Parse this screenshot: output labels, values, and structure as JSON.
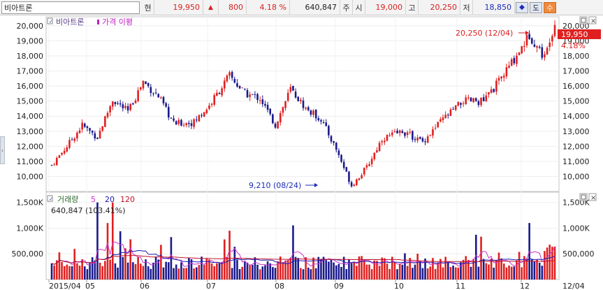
{
  "toolbar": {
    "stock_name": "비아트론",
    "current_label": "현",
    "current_price": "19,950",
    "change_arrow": "▲",
    "change": "800",
    "change_pct": "4.18 %",
    "volume": "640,847",
    "volume_label": "주",
    "open_label": "시",
    "open": "19,000",
    "high_label": "고",
    "high": "20,250",
    "low_label": "저",
    "low": "18,850",
    "btn_cursor": "◆",
    "btn_do": "도",
    "btn_su": "수"
  },
  "price_panel": {
    "legend_name": "비아트론",
    "legend_ma": "가격 이평",
    "high_annotation": "20,250 (12/04)",
    "low_annotation": "9,210 (08/24)",
    "last_price_tag": "19,950",
    "last_pct_tag": "4.18%",
    "y_ticks": [
      "20,000",
      "19,000",
      "18,000",
      "17,000",
      "16,000",
      "15,000",
      "14,000",
      "13,000",
      "12,000",
      "11,000",
      "10,000"
    ]
  },
  "volume_panel": {
    "legend_name": "거래량",
    "legend_ma5": "5",
    "legend_ma20": "20",
    "legend_ma120": "120",
    "last_info": "640,847 (103.41%)",
    "y_ticks": [
      "1,500K",
      "1,000K",
      "500,000"
    ]
  },
  "x_axis": {
    "labels": [
      "2015/04",
      "05",
      "06",
      "07",
      "08",
      "09",
      "10",
      "11",
      "12"
    ],
    "right_label": "12/04"
  },
  "colors": {
    "up": "#e02020",
    "down": "#1a1a8c",
    "ma_vol5": "#cc33cc",
    "ma_vol20": "#1a1ab0",
    "ma_vol120": "#c0102a",
    "legend_ma": "#c020c0"
  }
}
